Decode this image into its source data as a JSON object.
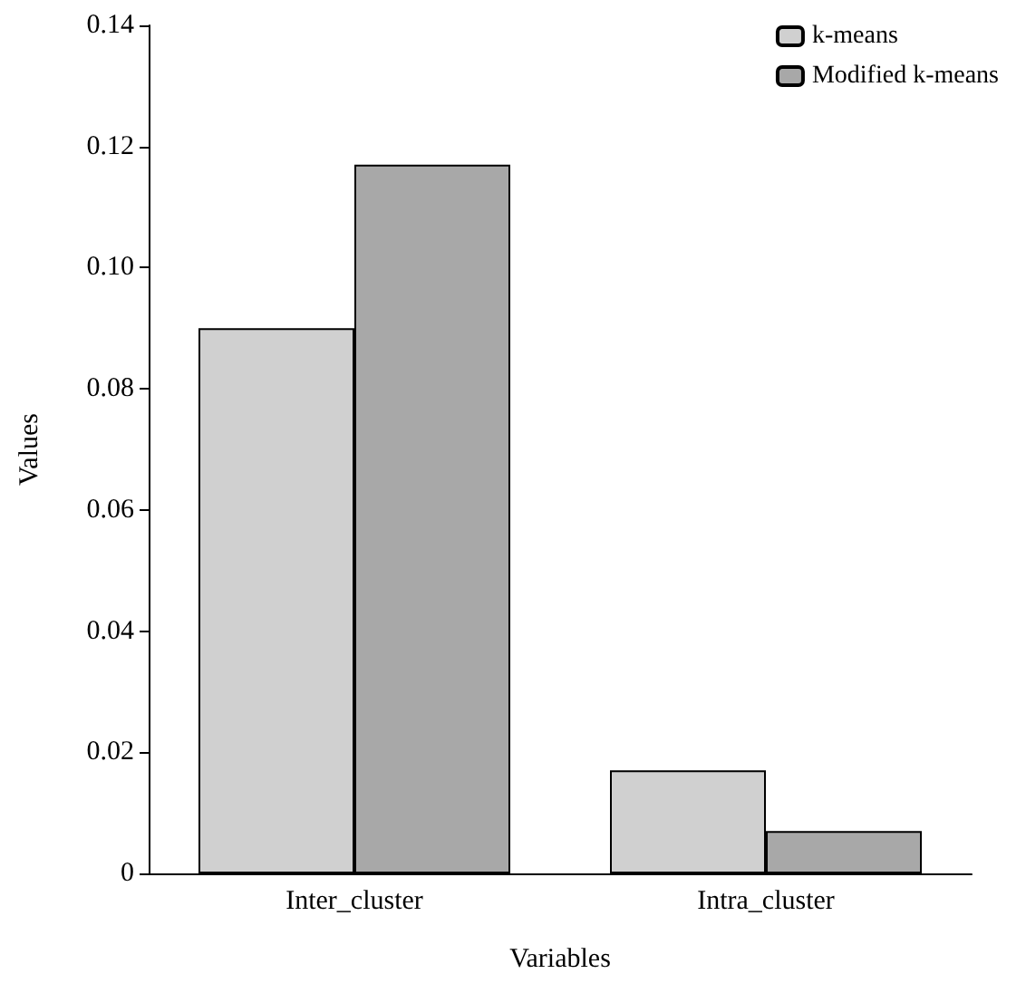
{
  "chart_data": {
    "type": "bar",
    "xlabel": "Variables",
    "ylabel": "Values",
    "categories": [
      "Inter_cluster",
      "Intra_cluster"
    ],
    "series": [
      {
        "name": "k-means",
        "color": "#d0d0d0",
        "values": [
          0.09,
          0.017
        ]
      },
      {
        "name": "Modified k-means",
        "color": "#a8a8a8",
        "values": [
          0.117,
          0.007
        ]
      }
    ],
    "ylim": [
      0,
      0.14
    ],
    "yticks": [
      0,
      0.02,
      0.04,
      0.06,
      0.08,
      {
        "value": 0.1,
        "label": "0.10"
      },
      0.12,
      0.14
    ],
    "grid": false,
    "legend": "top right"
  }
}
